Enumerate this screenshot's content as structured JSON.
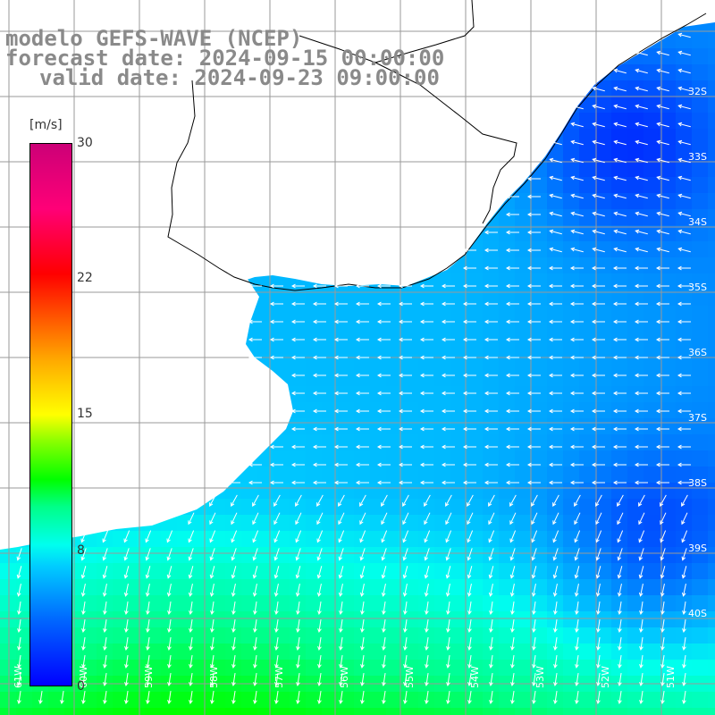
{
  "title": {
    "line1": "modelo GEFS-WAVE (NCEP)",
    "line2": "forecast date: 2024-09-15 00:00:00",
    "line3": "valid date: 2024-09-23 09:00:00"
  },
  "colorbar": {
    "unit": "[m/s]",
    "ticks": [
      "30",
      "22",
      "15",
      "8",
      "0"
    ]
  },
  "map": {
    "lat_labels": [
      "32S",
      "33S",
      "34S",
      "35S",
      "36S",
      "37S",
      "38S",
      "39S",
      "40S"
    ],
    "lon_labels": [
      "61W",
      "60W",
      "59W",
      "58W",
      "57W",
      "56W",
      "55W",
      "54W",
      "53W",
      "52W",
      "51W"
    ],
    "field": "wind speed",
    "colors": {
      "land": "#ffffff",
      "grid": "#9a9a9a",
      "coast": "#000000",
      "arrow": "#ffffff",
      "title": "#8a8a8a"
    }
  }
}
